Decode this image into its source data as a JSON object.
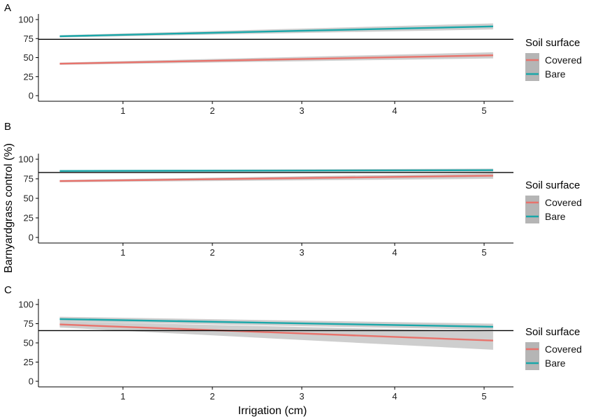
{
  "figure": {
    "y_label": "Barnyardgrass control (%)",
    "x_label": "Irrigation (cm)"
  },
  "colors": {
    "covered": "#e8736c",
    "bare": "#1aa7a9",
    "ribbon": "#bdbdbd",
    "reference_line": "#000000"
  },
  "chart_data": [
    {
      "type": "line",
      "panel_label": "A",
      "x_ticks": [
        "1",
        "2",
        "3",
        "4",
        "5"
      ],
      "y_ticks": [
        "0",
        "25",
        "50",
        "75",
        "100"
      ],
      "xlim": [
        0.3,
        5.1
      ],
      "ylim": [
        0,
        100
      ],
      "reference_line": 74,
      "legend": {
        "title": "Soil surface",
        "placement": "right",
        "entries": [
          "Covered",
          "Bare"
        ]
      },
      "series": [
        {
          "name": "Covered",
          "color_key": "covered",
          "x": [
            0.3,
            5.1
          ],
          "y": [
            42,
            53
          ],
          "ci_low": [
            40.5,
            49
          ],
          "ci_high": [
            43.5,
            57
          ]
        },
        {
          "name": "Bare",
          "color_key": "bare",
          "x": [
            0.3,
            5.1
          ],
          "y": [
            78,
            91
          ],
          "ci_low": [
            76.5,
            87
          ],
          "ci_high": [
            79.5,
            95
          ]
        }
      ]
    },
    {
      "type": "line",
      "panel_label": "B",
      "x_ticks": [
        "1",
        "2",
        "3",
        "4",
        "5"
      ],
      "y_ticks": [
        "0",
        "25",
        "50",
        "75",
        "100"
      ],
      "xlim": [
        0.3,
        5.1
      ],
      "ylim": [
        0,
        100
      ],
      "reference_line": 83,
      "legend": {
        "title": "Soil surface",
        "placement": "right",
        "entries": [
          "Covered",
          "Bare"
        ]
      },
      "series": [
        {
          "name": "Covered",
          "color_key": "covered",
          "x": [
            0.3,
            5.1
          ],
          "y": [
            72,
            79
          ],
          "ci_low": [
            70.5,
            75
          ],
          "ci_high": [
            73.5,
            82
          ]
        },
        {
          "name": "Bare",
          "color_key": "bare",
          "x": [
            0.3,
            5.1
          ],
          "y": [
            85,
            86
          ],
          "ci_low": [
            84,
            84
          ],
          "ci_high": [
            86,
            88
          ]
        }
      ]
    },
    {
      "type": "line",
      "panel_label": "C",
      "x_ticks": [
        "1",
        "2",
        "3",
        "4",
        "5"
      ],
      "y_ticks": [
        "0",
        "25",
        "50",
        "75",
        "100"
      ],
      "xlim": [
        0.3,
        5.1
      ],
      "ylim": [
        0,
        100
      ],
      "reference_line": 66,
      "legend": {
        "title": "Soil surface",
        "placement": "right",
        "entries": [
          "Covered",
          "Bare"
        ]
      },
      "series": [
        {
          "name": "Covered",
          "color_key": "covered",
          "x": [
            0.3,
            5.1
          ],
          "y": [
            74,
            53
          ],
          "ci_low": [
            70,
            41
          ],
          "ci_high": [
            78,
            65
          ]
        },
        {
          "name": "Bare",
          "color_key": "bare",
          "x": [
            0.3,
            5.1
          ],
          "y": [
            81,
            71
          ],
          "ci_low": [
            78,
            67
          ],
          "ci_high": [
            84,
            75
          ]
        }
      ]
    }
  ]
}
